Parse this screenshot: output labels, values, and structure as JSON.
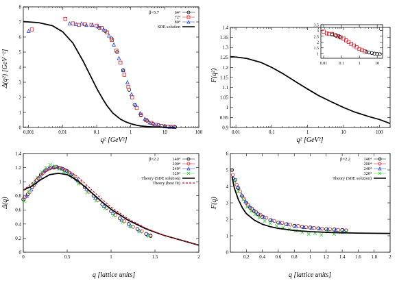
{
  "colors": {
    "black_series": "#000000",
    "red_series": "#e0141e",
    "blue_series": "#1f3fdc",
    "green_series": "#26d321",
    "purple_overlap": "#7a2a9a",
    "theory_black": "#000000",
    "theory_red_dashed": "#d0121a"
  },
  "chart_data": [
    {
      "id": "tl",
      "type": "scatter",
      "xscale": "log",
      "xlim": [
        0.0007,
        100
      ],
      "ylim": [
        0,
        8
      ],
      "xticks": [
        0.001,
        0.01,
        0.1,
        1,
        10,
        100
      ],
      "xtick_labels": [
        "0.001",
        "0.01",
        "0.1",
        "1",
        "10",
        "100"
      ],
      "yticks": [
        0,
        1,
        2,
        3,
        4,
        5,
        6,
        7,
        8
      ],
      "ytick_labels": [
        "0",
        "1",
        "2",
        "3",
        "4",
        "5",
        "6",
        "7",
        "8"
      ],
      "xlabel": "q² [GeV²]",
      "ylabel": "Δ(q²) [GeV⁻²]",
      "legend_header": "β=5.7",
      "legend_position": "top-right",
      "series": [
        {
          "name": "64⁴",
          "style": "circle",
          "color": "#000000",
          "x": [
            0.12,
            0.18,
            0.27,
            0.4,
            0.6,
            0.9,
            1.3,
            2.0,
            3.0,
            4.5,
            6.5,
            10,
            15,
            20
          ],
          "y": [
            6.6,
            6.4,
            5.9,
            5.0,
            3.8,
            2.5,
            1.5,
            0.8,
            0.45,
            0.25,
            0.16,
            0.09,
            0.05,
            0.03
          ]
        },
        {
          "name": "72⁴",
          "style": "square",
          "color": "#e0141e",
          "x": [
            0.00125,
            0.012,
            0.02,
            0.03,
            0.045,
            0.07,
            0.1,
            0.14,
            0.2,
            0.28,
            0.38,
            0.5,
            0.65,
            0.85,
            1.1,
            1.5,
            2.0,
            2.8,
            4.0,
            5.5,
            8,
            12,
            18
          ],
          "y": [
            6.5,
            7.2,
            6.9,
            6.8,
            6.85,
            6.8,
            6.75,
            6.6,
            6.3,
            5.8,
            5.1,
            4.3,
            3.5,
            2.7,
            2.0,
            1.3,
            0.85,
            0.5,
            0.3,
            0.18,
            0.1,
            0.06,
            0.04
          ]
        },
        {
          "name": "80⁴",
          "style": "triangle",
          "color": "#1f3fdc",
          "x": [
            0.001,
            0.016,
            0.025,
            0.036,
            0.05,
            0.075,
            0.11,
            0.16,
            0.23,
            0.32,
            0.45,
            0.6,
            0.8,
            1.05,
            1.4,
            1.9,
            2.6,
            3.6,
            5,
            7,
            10,
            14,
            19
          ],
          "y": [
            6.4,
            6.9,
            6.85,
            6.9,
            6.8,
            6.8,
            6.7,
            6.5,
            6.1,
            5.5,
            4.6,
            3.8,
            3.0,
            2.2,
            1.5,
            0.95,
            0.58,
            0.34,
            0.2,
            0.12,
            0.07,
            0.045,
            0.03
          ]
        },
        {
          "name": "SDE solution",
          "style": "line",
          "color": "#000000",
          "x": [
            0.0007,
            0.001,
            0.002,
            0.005,
            0.01,
            0.02,
            0.04,
            0.07,
            0.1,
            0.15,
            0.2,
            0.3,
            0.5,
            0.7,
            1,
            1.5,
            2,
            3,
            5,
            10,
            20
          ],
          "y": [
            7.02,
            7.0,
            6.95,
            6.75,
            6.35,
            5.6,
            4.4,
            3.3,
            2.6,
            1.9,
            1.45,
            0.95,
            0.55,
            0.38,
            0.25,
            0.15,
            0.1,
            0.06,
            0.03,
            0.012,
            0.006
          ]
        }
      ]
    },
    {
      "id": "tr",
      "type": "line",
      "xscale": "log",
      "xlim": [
        0.007,
        200
      ],
      "ylim": [
        0.9,
        1.4
      ],
      "xticks": [
        0.01,
        0.1,
        1,
        10,
        100
      ],
      "xtick_labels": [
        "0.01",
        "0.1",
        "1",
        "10",
        "100"
      ],
      "yticks": [
        0.9,
        0.95,
        1,
        1.05,
        1.1,
        1.15,
        1.2,
        1.25,
        1.3,
        1.35,
        1.4
      ],
      "ytick_labels": [
        "0.9",
        "0.95",
        "1",
        "1.05",
        "1.1",
        "1.15",
        "1.2",
        "1.25",
        "1.3",
        "1.35",
        "1.4"
      ],
      "xlabel": "q² [GeV²]",
      "ylabel": "F(q²)",
      "series": [
        {
          "style": "line",
          "color": "#000000",
          "x": [
            0.007,
            0.01,
            0.02,
            0.05,
            0.1,
            0.2,
            0.5,
            1,
            2,
            5,
            10,
            20,
            50,
            100,
            200
          ],
          "y": [
            1.254,
            1.252,
            1.245,
            1.225,
            1.2,
            1.17,
            1.125,
            1.092,
            1.06,
            1.025,
            1.0,
            0.978,
            0.955,
            0.94,
            0.92
          ]
        }
      ],
      "inset": {
        "xscale": "log",
        "xlim": [
          0.007,
          20
        ],
        "ylim": [
          0.6,
          3.5
        ],
        "xticks": [
          0.01,
          0.1,
          1,
          10
        ],
        "xtick_labels": [
          "0.01",
          "0.1",
          "1",
          "10"
        ],
        "yticks": [
          1,
          1.5,
          2,
          2.5,
          3,
          3.5
        ],
        "ytick_labels": [
          "1",
          "1.5",
          "2",
          "2.5",
          "3",
          "3.5"
        ],
        "series": [
          {
            "style": "square",
            "color": "#e0141e",
            "x": [
              0.01,
              0.015,
              0.02,
              0.03,
              0.045,
              0.065,
              0.09,
              0.13,
              0.18,
              0.25,
              0.35,
              0.5,
              0.7,
              1.0,
              1.4,
              2.0
            ],
            "y": [
              2.9,
              2.75,
              2.7,
              2.7,
              2.6,
              2.5,
              2.4,
              2.3,
              2.15,
              2.0,
              1.85,
              1.7,
              1.55,
              1.4,
              1.3,
              1.2
            ]
          },
          {
            "style": "circle",
            "color": "#000000",
            "x": [
              0.03,
              0.05,
              0.08,
              2.5,
              3.5,
              5,
              7,
              10,
              14
            ],
            "y": [
              2.65,
              2.55,
              2.45,
              1.15,
              1.1,
              1.05,
              1.0,
              0.98,
              0.95
            ]
          }
        ]
      }
    },
    {
      "id": "bl",
      "type": "scatter",
      "xlim": [
        0,
        2
      ],
      "ylim": [
        0,
        1.4
      ],
      "xticks": [
        0,
        0.5,
        1,
        1.5,
        2
      ],
      "xtick_labels": [
        "0",
        "0.5",
        "1",
        "1.5",
        "2"
      ],
      "yticks": [
        0,
        0.2,
        0.4,
        0.6,
        0.8,
        1.0,
        1.2,
        1.4
      ],
      "ytick_labels": [
        "0",
        "0.2",
        "0.4",
        "0.6",
        "0.8",
        "1",
        "1.2",
        "1.4"
      ],
      "xlabel": "q [lattice units]",
      "ylabel": "Δ(q)",
      "legend_header": "β=2.2",
      "legend_position": "top-right",
      "series": [
        {
          "name": "140⁴",
          "style": "circle",
          "color": "#000000",
          "x": [
            0.0,
            0.05,
            0.1,
            0.15,
            0.2,
            0.25,
            0.3,
            0.35,
            0.4,
            0.45,
            0.5,
            0.55,
            0.6,
            0.7,
            0.8,
            0.9,
            1.0,
            1.1,
            1.2,
            1.3,
            1.4,
            1.45
          ],
          "y": [
            0.75,
            0.82,
            0.92,
            1.02,
            1.1,
            1.16,
            1.19,
            1.2,
            1.2,
            1.18,
            1.15,
            1.1,
            1.04,
            0.92,
            0.8,
            0.68,
            0.58,
            0.48,
            0.4,
            0.33,
            0.26,
            0.23
          ]
        },
        {
          "name": "200⁴",
          "style": "circle",
          "color": "#e0141e",
          "x": [
            0.02,
            0.07,
            0.12,
            0.17,
            0.22,
            0.27,
            0.32,
            0.37,
            0.42,
            0.47,
            0.52,
            0.57,
            0.65,
            0.75,
            0.85,
            0.95,
            1.05,
            1.15,
            1.25,
            1.35,
            1.45
          ],
          "y": [
            0.78,
            0.85,
            0.95,
            1.05,
            1.12,
            1.17,
            1.2,
            1.21,
            1.2,
            1.17,
            1.13,
            1.08,
            0.99,
            0.86,
            0.74,
            0.63,
            0.53,
            0.44,
            0.36,
            0.3,
            0.24
          ]
        },
        {
          "name": "240⁴",
          "style": "triangle",
          "color": "#1f3fdc",
          "x": [
            0.04,
            0.09,
            0.14,
            0.19,
            0.24,
            0.29,
            0.34,
            0.39,
            0.44,
            0.49,
            0.54,
            0.62,
            0.72,
            0.82,
            0.92,
            1.02,
            1.12,
            1.22,
            1.32,
            1.42
          ],
          "y": [
            0.8,
            0.89,
            0.99,
            1.08,
            1.15,
            1.19,
            1.21,
            1.21,
            1.19,
            1.16,
            1.11,
            1.02,
            0.9,
            0.77,
            0.66,
            0.56,
            0.46,
            0.38,
            0.31,
            0.25
          ]
        },
        {
          "name": "320⁴",
          "style": "cross",
          "color": "#26d321",
          "x": [
            0.01,
            0.06,
            0.11,
            0.16,
            0.21,
            0.26,
            0.31,
            0.36,
            0.41,
            0.46,
            0.51,
            0.56,
            0.63,
            0.73,
            0.83,
            0.93,
            1.03,
            1.13,
            1.23,
            1.33,
            1.43
          ],
          "y": [
            0.72,
            0.86,
            0.97,
            1.06,
            1.14,
            1.2,
            1.24,
            1.22,
            1.18,
            1.14,
            1.12,
            1.06,
            0.97,
            0.85,
            0.73,
            0.62,
            0.52,
            0.43,
            0.36,
            0.29,
            0.23
          ]
        },
        {
          "name": "Theory (SDE solution)",
          "style": "line",
          "color": "#000000",
          "x": [
            0,
            0.1,
            0.2,
            0.3,
            0.4,
            0.5,
            0.6,
            0.7,
            0.8,
            0.9,
            1.0,
            1.2,
            1.4,
            1.6,
            1.8,
            2.0
          ],
          "y": [
            0.88,
            0.94,
            1.03,
            1.1,
            1.12,
            1.1,
            1.03,
            0.93,
            0.82,
            0.71,
            0.61,
            0.45,
            0.33,
            0.24,
            0.17,
            0.1
          ]
        },
        {
          "name": "Theory (best fit)",
          "style": "dashed",
          "color": "#d0121a",
          "x": [
            0,
            0.1,
            0.2,
            0.3,
            0.4,
            0.5,
            0.6,
            0.7,
            0.8,
            0.9,
            1.0,
            1.2,
            1.4,
            1.6,
            1.8,
            2.0
          ],
          "y": [
            0.88,
            0.98,
            1.1,
            1.18,
            1.2,
            1.17,
            1.09,
            0.98,
            0.86,
            0.75,
            0.64,
            0.47,
            0.34,
            0.24,
            0.17,
            0.1
          ]
        }
      ]
    },
    {
      "id": "br",
      "type": "scatter",
      "xlim": [
        0,
        2
      ],
      "ylim": [
        0,
        6
      ],
      "xticks": [
        0.2,
        0.4,
        0.6,
        0.8,
        1,
        1.2,
        1.4,
        1.6,
        1.8,
        2
      ],
      "xtick_labels": [
        "0.2",
        "0.4",
        "0.6",
        "0.8",
        "1",
        "1.2",
        "1.4",
        "1.6",
        "1.8",
        "2"
      ],
      "yticks": [
        0,
        1,
        2,
        3,
        4,
        5,
        6
      ],
      "ytick_labels": [
        "0",
        "1",
        "2",
        "3",
        "4",
        "5",
        "6"
      ],
      "xlabel": "q [lattice units]",
      "ylabel": "F(q)",
      "legend_header": "β=2.2",
      "legend_position": "top-right",
      "series": [
        {
          "name": "140⁴",
          "style": "circle",
          "color": "#000000",
          "x": [
            0.02,
            0.06,
            0.1,
            0.15,
            0.2,
            0.25,
            0.3,
            0.35,
            0.4,
            0.5,
            0.6,
            0.7,
            0.8,
            0.9,
            1.0,
            1.1,
            1.2,
            1.3,
            1.4,
            1.45
          ],
          "y": [
            5.0,
            4.4,
            3.9,
            3.4,
            3.0,
            2.7,
            2.5,
            2.3,
            2.15,
            1.95,
            1.8,
            1.7,
            1.6,
            1.55,
            1.5,
            1.45,
            1.4,
            1.38,
            1.35,
            1.33
          ]
        },
        {
          "name": "200⁴",
          "style": "circle",
          "color": "#e0141e",
          "x": [
            0.03,
            0.08,
            0.12,
            0.17,
            0.22,
            0.27,
            0.32,
            0.38,
            0.45,
            0.55,
            0.65,
            0.75,
            0.85,
            0.95,
            1.05,
            1.15,
            1.25,
            1.35,
            1.45
          ],
          "y": [
            4.7,
            4.1,
            3.7,
            3.25,
            2.9,
            2.65,
            2.45,
            2.25,
            2.1,
            1.9,
            1.78,
            1.68,
            1.6,
            1.52,
            1.47,
            1.43,
            1.4,
            1.36,
            1.33
          ]
        },
        {
          "name": "240⁴",
          "style": "triangle",
          "color": "#1f3fdc",
          "x": [
            0.04,
            0.09,
            0.14,
            0.19,
            0.24,
            0.29,
            0.34,
            0.42,
            0.52,
            0.62,
            0.72,
            0.82,
            0.92,
            1.02,
            1.12,
            1.22,
            1.32,
            1.42
          ],
          "y": [
            4.5,
            3.95,
            3.5,
            3.1,
            2.8,
            2.55,
            2.35,
            2.15,
            1.95,
            1.8,
            1.7,
            1.6,
            1.53,
            1.48,
            1.44,
            1.4,
            1.37,
            1.33
          ]
        },
        {
          "name": "320⁴",
          "style": "cross",
          "color": "#26d321",
          "x": [
            0.05,
            0.1,
            0.16,
            0.21,
            0.26,
            0.31,
            0.36,
            0.43,
            0.5,
            0.58,
            0.66,
            0.74,
            0.82,
            0.9,
            0.98,
            1.06,
            1.14,
            1.22,
            1.3,
            1.38,
            1.45
          ],
          "y": [
            4.3,
            3.7,
            3.2,
            2.75,
            2.5,
            2.3,
            2.1,
            1.9,
            1.75,
            1.6,
            1.5,
            1.4,
            1.3,
            1.2,
            1.1,
            1.15,
            1.05,
            1.25,
            1.1,
            1.2,
            1.25
          ]
        },
        {
          "name": "Theory (SDE solution)",
          "style": "line",
          "color": "#000000",
          "x": [
            0.02,
            0.05,
            0.1,
            0.15,
            0.2,
            0.3,
            0.4,
            0.5,
            0.6,
            0.8,
            1.0,
            1.2,
            1.4,
            1.6,
            1.8,
            2.0
          ],
          "y": [
            4.6,
            3.9,
            3.2,
            2.7,
            2.35,
            1.95,
            1.7,
            1.55,
            1.45,
            1.32,
            1.25,
            1.21,
            1.18,
            1.16,
            1.15,
            1.14
          ]
        }
      ]
    }
  ]
}
